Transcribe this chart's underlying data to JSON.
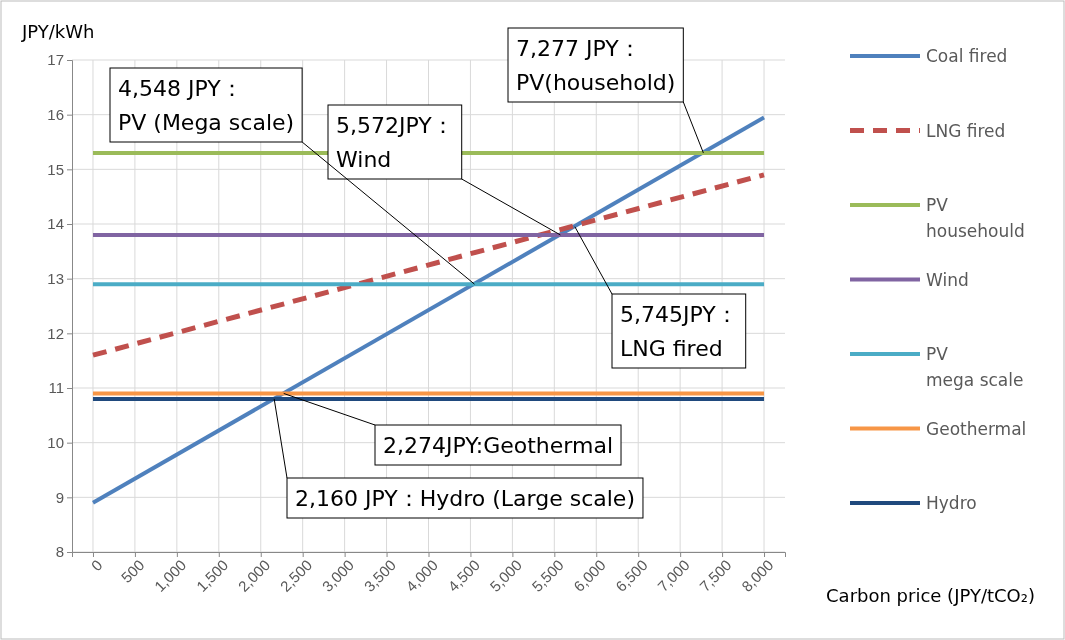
{
  "chart_data": {
    "type": "line",
    "xlabel": "Carbon price (JPY/tCO₂)",
    "ylabel": "JPY/kWh",
    "xlim": [
      -250,
      8250
    ],
    "ylim": [
      8,
      17
    ],
    "xticks": [
      {
        "value": 0,
        "label": "0"
      },
      {
        "value": 500,
        "label": "500"
      },
      {
        "value": 1000,
        "label": "1,000"
      },
      {
        "value": 1500,
        "label": "1,500"
      },
      {
        "value": 2000,
        "label": "2,000"
      },
      {
        "value": 2500,
        "label": "2,500"
      },
      {
        "value": 3000,
        "label": "3,000"
      },
      {
        "value": 3500,
        "label": "3,500"
      },
      {
        "value": 4000,
        "label": "4,000"
      },
      {
        "value": 4500,
        "label": "4,500"
      },
      {
        "value": 5000,
        "label": "5,000"
      },
      {
        "value": 5500,
        "label": "5,500"
      },
      {
        "value": 6000,
        "label": "6,000"
      },
      {
        "value": 6500,
        "label": "6,500"
      },
      {
        "value": 7000,
        "label": "7,000"
      },
      {
        "value": 7500,
        "label": "7,500"
      },
      {
        "value": 8000,
        "label": "8,000"
      }
    ],
    "yticks": [
      8,
      9,
      10,
      11,
      12,
      13,
      14,
      15,
      16,
      17
    ],
    "grid": true,
    "legend": "right",
    "marker": "none",
    "x": [
      0,
      8000
    ],
    "series": [
      {
        "name": "Coal fired",
        "color": "#4f81bd",
        "values": [
          8.9,
          15.95
        ]
      },
      {
        "name": "LNG fired",
        "color": "#c0504d",
        "values": [
          11.6,
          14.9
        ],
        "line_style": "dashed"
      },
      {
        "name": "PV househould",
        "color": "#9bbb59",
        "values": [
          15.3,
          15.3
        ]
      },
      {
        "name": "Wind",
        "color": "#8064a2",
        "values": [
          13.8,
          13.8
        ]
      },
      {
        "name": "PV mega scale",
        "color": "#4bacc6",
        "values": [
          12.9,
          12.9
        ]
      },
      {
        "name": "Geothermal",
        "color": "#f79646",
        "values": [
          10.9,
          10.9
        ]
      },
      {
        "name": "Hydro",
        "color": "#1f497d",
        "values": [
          10.8,
          10.8
        ]
      }
    ],
    "annotations": [
      {
        "text": "7,277 JPY：\nPV(household)",
        "x": 7277,
        "y": 15.3
      },
      {
        "text": "5,572JPY：\nWind",
        "x": 5572,
        "y": 13.8
      },
      {
        "text": "5,745JPY：\nLNG fired",
        "x": 5745,
        "y": 13.95
      },
      {
        "text": "4,548 JPY：\nPV (Mega scale)",
        "x": 4548,
        "y": 12.9
      },
      {
        "text": "2,274JPY:Geothermal",
        "x": 2274,
        "y": 10.9
      },
      {
        "text": "2,160 JPY：Hydro (Large scale)",
        "x": 2160,
        "y": 10.8
      }
    ]
  }
}
